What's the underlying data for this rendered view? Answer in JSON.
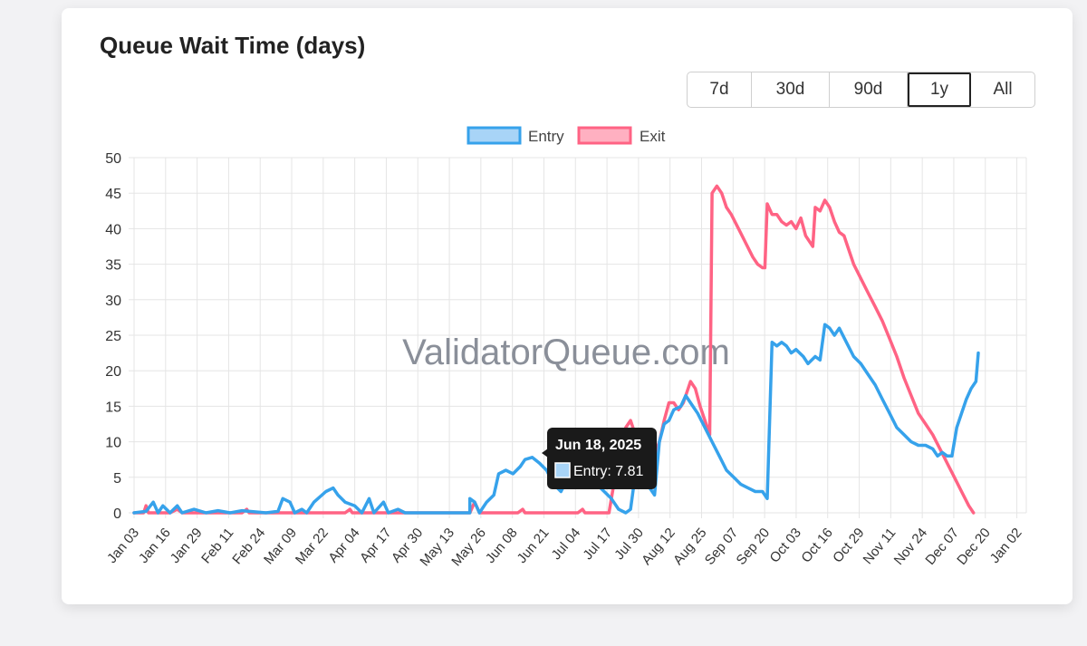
{
  "page": {
    "title": "Queue Wait Time (days)"
  },
  "range_buttons": [
    {
      "label": "7d",
      "active": false
    },
    {
      "label": "30d",
      "active": false
    },
    {
      "label": "90d",
      "active": false
    },
    {
      "label": "1y",
      "active": true
    },
    {
      "label": "All",
      "active": false
    }
  ],
  "watermark": "ValidatorQueue.com",
  "tooltip": {
    "title": "Jun 18, 2025",
    "label": "Entry: 7.81"
  },
  "colors": {
    "entry": "#36a2eb",
    "exit": "#ff6384",
    "grid": "#e5e5e5",
    "axis_text": "#555555"
  },
  "chart_data": {
    "type": "line",
    "title": "Queue Wait Time (days)",
    "xlabel": "",
    "ylabel": "",
    "ylim": [
      0,
      50
    ],
    "y_ticks": [
      0,
      5,
      10,
      15,
      20,
      25,
      30,
      35,
      40,
      45,
      50
    ],
    "grid": true,
    "legend_position": "top-center",
    "x_tick_labels": [
      "Jan 03",
      "Jan 16",
      "Jan 29",
      "Feb 11",
      "Feb 24",
      "Mar 09",
      "Mar 22",
      "Apr 04",
      "Apr 17",
      "Apr 30",
      "May 13",
      "May 26",
      "Jun 08",
      "Jun 21",
      "Jul 04",
      "Jul 17",
      "Jul 30",
      "Aug 12",
      "Aug 25",
      "Sep 07",
      "Sep 20",
      "Oct 03",
      "Oct 16",
      "Oct 29",
      "Nov 11",
      "Nov 24",
      "Dec 07",
      "Dec 20",
      "Jan 02"
    ],
    "x_range_days": [
      0,
      372
    ],
    "series": [
      {
        "name": "Entry",
        "color": "#36a2eb",
        "points": [
          [
            0,
            0
          ],
          [
            5,
            0.2
          ],
          [
            8,
            1.5
          ],
          [
            10,
            0
          ],
          [
            12,
            1
          ],
          [
            15,
            0
          ],
          [
            18,
            1
          ],
          [
            20,
            0
          ],
          [
            25,
            0.5
          ],
          [
            30,
            0
          ],
          [
            35,
            0.3
          ],
          [
            40,
            0
          ],
          [
            45,
            0.3
          ],
          [
            55,
            0
          ],
          [
            60,
            0.2
          ],
          [
            62,
            2
          ],
          [
            65,
            1.5
          ],
          [
            67,
            0
          ],
          [
            70,
            0.5
          ],
          [
            72,
            0
          ],
          [
            75,
            1.5
          ],
          [
            80,
            3
          ],
          [
            83,
            3.5
          ],
          [
            85,
            2.5
          ],
          [
            88,
            1.5
          ],
          [
            92,
            1
          ],
          [
            95,
            0
          ],
          [
            98,
            2
          ],
          [
            100,
            0
          ],
          [
            104,
            1.5
          ],
          [
            106,
            0
          ],
          [
            110,
            0.5
          ],
          [
            113,
            0
          ],
          [
            120,
            0
          ],
          [
            130,
            0
          ],
          [
            140,
            0
          ],
          [
            140,
            2
          ],
          [
            142,
            1.5
          ],
          [
            144,
            0
          ],
          [
            147,
            1.5
          ],
          [
            150,
            2.5
          ],
          [
            152,
            5.5
          ],
          [
            155,
            6
          ],
          [
            158,
            5.5
          ],
          [
            161,
            6.5
          ],
          [
            163,
            7.5
          ],
          [
            166,
            7.81
          ],
          [
            169,
            7
          ],
          [
            172,
            6
          ],
          [
            175,
            4
          ],
          [
            178,
            3
          ],
          [
            181,
            5
          ],
          [
            184,
            6
          ],
          [
            187,
            7
          ],
          [
            190,
            5
          ],
          [
            193,
            4
          ],
          [
            196,
            3
          ],
          [
            199,
            2
          ],
          [
            202,
            0.5
          ],
          [
            205,
            0
          ],
          [
            207,
            0.5
          ],
          [
            209,
            5.5
          ],
          [
            211,
            4.5
          ],
          [
            214,
            4
          ],
          [
            217,
            2.5
          ],
          [
            219,
            10
          ],
          [
            221,
            12.5
          ],
          [
            223,
            13
          ],
          [
            225,
            14.5
          ],
          [
            228,
            15
          ],
          [
            230,
            16.5
          ],
          [
            233,
            15
          ],
          [
            235,
            14
          ],
          [
            238,
            12
          ],
          [
            241,
            10
          ],
          [
            244,
            8
          ],
          [
            247,
            6
          ],
          [
            250,
            5
          ],
          [
            253,
            4
          ],
          [
            256,
            3.5
          ],
          [
            259,
            3
          ],
          [
            262,
            3
          ],
          [
            264,
            2
          ],
          [
            266,
            24
          ],
          [
            268,
            23.5
          ],
          [
            270,
            24
          ],
          [
            272,
            23.5
          ],
          [
            274,
            22.5
          ],
          [
            276,
            23
          ],
          [
            279,
            22
          ],
          [
            281,
            21
          ],
          [
            284,
            22
          ],
          [
            286,
            21.5
          ],
          [
            288,
            26.5
          ],
          [
            290,
            26
          ],
          [
            292,
            25
          ],
          [
            294,
            26
          ],
          [
            297,
            24
          ],
          [
            300,
            22
          ],
          [
            303,
            21
          ],
          [
            306,
            19.5
          ],
          [
            309,
            18
          ],
          [
            312,
            16
          ],
          [
            315,
            14
          ],
          [
            318,
            12
          ],
          [
            321,
            11
          ],
          [
            324,
            10
          ],
          [
            327,
            9.5
          ],
          [
            330,
            9.5
          ],
          [
            333,
            9
          ],
          [
            335,
            8
          ],
          [
            337,
            8.5
          ],
          [
            339,
            8
          ],
          [
            341,
            8
          ],
          [
            343,
            12
          ],
          [
            345,
            14
          ],
          [
            347,
            16
          ],
          [
            349,
            17.5
          ],
          [
            351,
            18.5
          ],
          [
            352,
            22.5
          ]
        ]
      },
      {
        "name": "Exit",
        "color": "#ff6384",
        "points": [
          [
            0,
            0
          ],
          [
            4,
            0
          ],
          [
            5,
            1
          ],
          [
            6,
            0
          ],
          [
            15,
            0
          ],
          [
            18,
            0.5
          ],
          [
            20,
            0
          ],
          [
            45,
            0
          ],
          [
            47,
            0.5
          ],
          [
            48,
            0
          ],
          [
            88,
            0
          ],
          [
            90,
            0.5
          ],
          [
            91,
            0
          ],
          [
            140,
            0
          ],
          [
            142,
            1.5
          ],
          [
            144,
            0
          ],
          [
            160,
            0
          ],
          [
            162,
            0.5
          ],
          [
            163,
            0
          ],
          [
            185,
            0
          ],
          [
            187,
            0.5
          ],
          [
            188,
            0
          ],
          [
            198,
            0
          ],
          [
            200,
            4
          ],
          [
            202,
            9
          ],
          [
            205,
            12
          ],
          [
            207,
            13
          ],
          [
            209,
            11
          ],
          [
            211,
            10
          ],
          [
            213,
            7
          ],
          [
            215,
            7.5
          ],
          [
            217,
            8
          ],
          [
            219,
            10
          ],
          [
            221,
            13
          ],
          [
            223,
            15.5
          ],
          [
            225,
            15.5
          ],
          [
            227,
            14.5
          ],
          [
            229,
            15.5
          ],
          [
            232,
            18.5
          ],
          [
            234,
            17.5
          ],
          [
            236,
            15
          ],
          [
            238,
            13
          ],
          [
            240,
            11
          ],
          [
            241,
            45
          ],
          [
            243,
            46
          ],
          [
            245,
            45
          ],
          [
            247,
            43
          ],
          [
            249,
            42
          ],
          [
            252,
            40
          ],
          [
            255,
            38
          ],
          [
            258,
            36
          ],
          [
            260,
            35
          ],
          [
            262,
            34.5
          ],
          [
            263,
            34.5
          ],
          [
            264,
            43.5
          ],
          [
            266,
            42
          ],
          [
            268,
            42
          ],
          [
            270,
            41
          ],
          [
            272,
            40.5
          ],
          [
            274,
            41
          ],
          [
            276,
            40
          ],
          [
            278,
            41.5
          ],
          [
            280,
            39
          ],
          [
            283,
            37.5
          ],
          [
            284,
            43
          ],
          [
            286,
            42.5
          ],
          [
            288,
            44
          ],
          [
            290,
            43
          ],
          [
            292,
            41
          ],
          [
            294,
            39.5
          ],
          [
            296,
            39
          ],
          [
            298,
            37
          ],
          [
            300,
            35
          ],
          [
            303,
            33
          ],
          [
            306,
            31
          ],
          [
            309,
            29
          ],
          [
            312,
            27
          ],
          [
            315,
            24.5
          ],
          [
            318,
            22
          ],
          [
            321,
            19
          ],
          [
            324,
            16.5
          ],
          [
            327,
            14
          ],
          [
            330,
            12.5
          ],
          [
            333,
            11
          ],
          [
            336,
            9
          ],
          [
            339,
            7
          ],
          [
            342,
            5
          ],
          [
            345,
            3
          ],
          [
            348,
            1
          ],
          [
            350,
            0
          ]
        ]
      }
    ]
  }
}
